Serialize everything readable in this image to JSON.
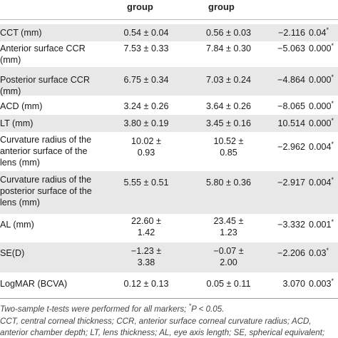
{
  "header": {
    "group1": "group",
    "group2": "group"
  },
  "rows": [
    {
      "label": "CCT (mm)",
      "g1": "0.54 ± 0.04",
      "g2": "0.56 ± 0.03",
      "t": "−2.116",
      "p": "0.04",
      "star": "*"
    },
    {
      "label": "Anterior surface CCR",
      "g1": "7.53 ± 0.33",
      "g2": "7.84 ± 0.30",
      "t": "−5.063",
      "p": "0.000",
      "star": "*",
      "label2": "(mm)"
    },
    {
      "label": "Posterior surface CCR",
      "g1": "6.75 ± 0.34",
      "g2": "7.03 ± 0.24",
      "t": "−4.864",
      "p": "0.000",
      "star": "*",
      "label2": "(mm)"
    },
    {
      "label": "ACD (mm)",
      "g1": "3.24 ± 0.26",
      "g2": "3.64 ± 0.26",
      "t": "−8.065",
      "p": "0.000",
      "star": "*"
    },
    {
      "label": "LT (mm)",
      "g1": "3.80 ± 0.19",
      "g2": "3.45 ± 0.16",
      "t": "10.514",
      "p": "0.000",
      "star": "*"
    },
    {
      "label": "Curvature radius of the",
      "label2": "anterior surface of the",
      "label3": "lens (mm)",
      "g1": "10.02 ±",
      "g1b": "0.93",
      "g2": "10.52 ±",
      "g2b": "0.85",
      "t": "−2.962",
      "p": "0.004",
      "star": "*"
    },
    {
      "label": "Curvature radius of the",
      "label2": "posterior surface of the",
      "label3": "lens (mm)",
      "g1": "5.55 ± 0.51",
      "g2": "5.80 ± 0.36",
      "t": "−2.917",
      "p": "0.004",
      "star": "*"
    },
    {
      "label": "AL (mm)",
      "g1": "22.60 ±",
      "g1b": "1.42",
      "g2": "23.45 ±",
      "g2b": "1.23",
      "t": "−3.332",
      "p": "0.001",
      "star": "*"
    },
    {
      "label": "SE(D)",
      "g1": "−1.23 ±",
      "g1b": "3.38",
      "g2": "−0.07 ±",
      "g2b": "2.00",
      "t": "−2.206",
      "p": "0.03",
      "star": "*"
    },
    {
      "label": "LogMAR (BCVA)",
      "g1": "0.12 ± 0.13",
      "g2": "0.05 ± 0.11",
      "t": "3.070",
      "p": "0.003",
      "star": "*"
    }
  ],
  "footnotes": {
    "line1_a": "Two-sample t-tests were performed for all markers; ",
    "line1_star": "*",
    "line1_b": "P < 0.05.",
    "line2": "CCT, central corneal thickness; CCR, anterior surface corneal curvature radius; ACD,",
    "line3": "anterior chamber depth; LT, lens thickness; AL, eye axis length; SE, spherical equivalent;"
  }
}
